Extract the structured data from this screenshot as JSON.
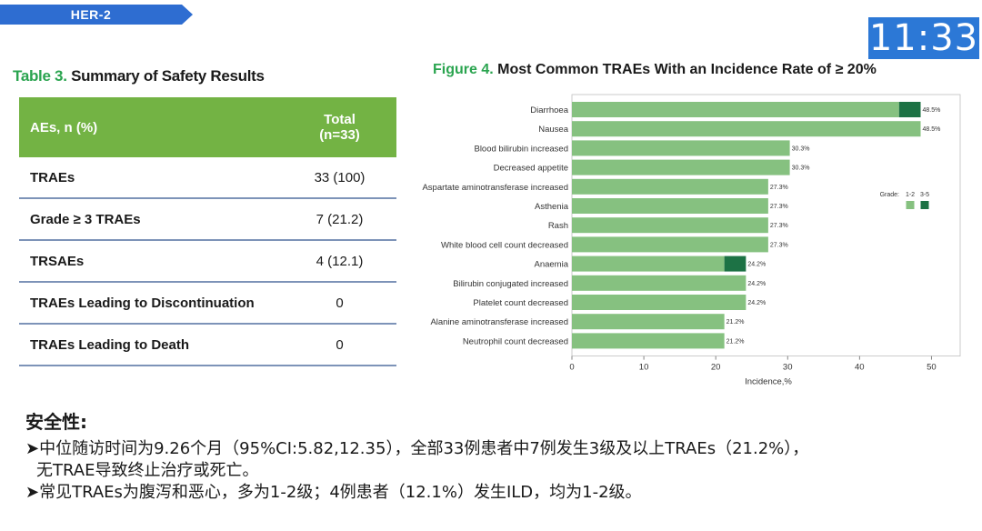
{
  "header": {
    "tag": "HER-2",
    "clock": "11:33"
  },
  "table": {
    "title_label": "Table 3.",
    "title_text": " Summary of Safety Results",
    "col1_header": "AEs, n (%)",
    "col2_header": [
      "Total",
      "(n=33)"
    ],
    "rows": [
      {
        "label": "TRAEs",
        "value": "33 (100)"
      },
      {
        "label": "Grade ≥ 3 TRAEs",
        "value": "7 (21.2)"
      },
      {
        "label": "TRSAEs",
        "value": "4 (12.1)"
      },
      {
        "label": "TRAEs Leading to Discontinuation",
        "value": "0"
      },
      {
        "label": "TRAEs Leading to Death",
        "value": "0"
      }
    ]
  },
  "figure": {
    "label": "Figure 4.",
    "text": "  Most Common TRAEs With an Incidence Rate of ≥ 20%"
  },
  "chart_data": {
    "type": "bar",
    "orientation": "horizontal",
    "stacked": true,
    "categories": [
      "Diarrhoea",
      "Nausea",
      "Blood bilirubin increased",
      "Decreased appetite",
      "Aspartate aminotransferase increased",
      "Asthenia",
      "Rash",
      "White blood cell count decreased",
      "Anaemia",
      "Bilirubin conjugated increased",
      "Platelet count decreased",
      "Alanine aminotransferase increased",
      "Neutrophil count decreased"
    ],
    "series": [
      {
        "name": "1-2",
        "color": "#86c180",
        "values": [
          45.5,
          48.5,
          30.3,
          30.3,
          27.3,
          27.3,
          27.3,
          27.3,
          21.2,
          24.2,
          24.2,
          21.2,
          21.2
        ]
      },
      {
        "name": "3-5",
        "color": "#1d7245",
        "values": [
          3.0,
          0,
          0,
          0,
          0,
          0,
          0,
          0,
          3.0,
          0,
          0,
          0,
          0
        ]
      }
    ],
    "data_labels": [
      "48.5%",
      "48.5%",
      "30.3%",
      "30.3%",
      "27.3%",
      "27.3%",
      "27.3%",
      "27.3%",
      "24.2%",
      "24.2%",
      "24.2%",
      "21.2%",
      "21.2%"
    ],
    "xlabel": "Incidence,%",
    "xlim": [
      0,
      54
    ],
    "xticks": [
      0,
      10,
      20,
      30,
      40,
      50
    ],
    "legend_title": "Grade:",
    "legend_placement": "right",
    "grid": false
  },
  "notes": {
    "heading": "安全性:",
    "bullet1": "➤中位随访时间为9.26个月（95%CI:5.82,12.35），全部33例患者中7例发生3级及以上TRAEs（21.2%），",
    "bullet1_cont": "无TRAE导致终止治疗或死亡。",
    "bullet2": "➤常见TRAEs为腹泻和恶心，多为1-2级；4例患者（12.1%）发生ILD，均为1-2级。"
  }
}
